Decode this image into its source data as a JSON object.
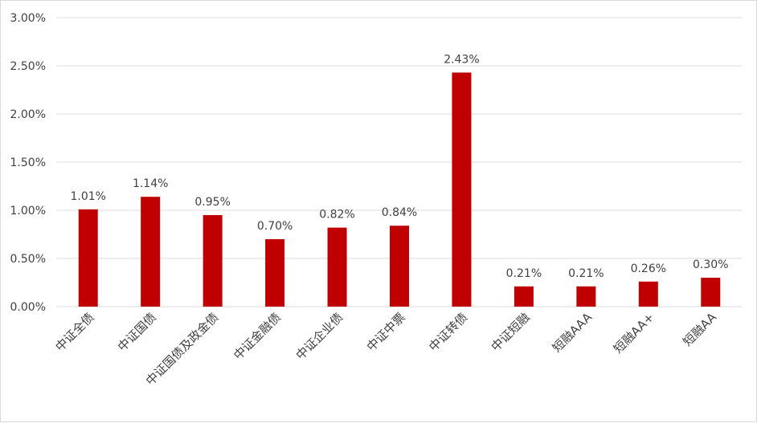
{
  "chart_data": {
    "type": "bar",
    "title": "",
    "xlabel": "",
    "ylabel": "",
    "categories": [
      "中证全债",
      "中证国债",
      "中证国债及政金债",
      "中证金融债",
      "中证企业债",
      "中证中票",
      "中证转债",
      "中证短融",
      "短融AAA",
      "短融AA+",
      "短融AA"
    ],
    "values": [
      1.01,
      1.14,
      0.95,
      0.7,
      0.82,
      0.84,
      2.43,
      0.21,
      0.21,
      0.26,
      0.3
    ],
    "data_labels": [
      "1.01%",
      "1.14%",
      "0.95%",
      "0.70%",
      "0.82%",
      "0.84%",
      "2.43%",
      "0.21%",
      "0.21%",
      "0.26%",
      "0.30%"
    ],
    "ylim": [
      0,
      3.0
    ],
    "yticks": [
      0,
      0.5,
      1.0,
      1.5,
      2.0,
      2.5,
      3.0
    ],
    "ytick_labels": [
      "0.00%",
      "0.50%",
      "1.00%",
      "1.50%",
      "2.00%",
      "2.50%",
      "3.00%"
    ],
    "grid": true,
    "legend": "none",
    "bar_color": "#c00000"
  }
}
